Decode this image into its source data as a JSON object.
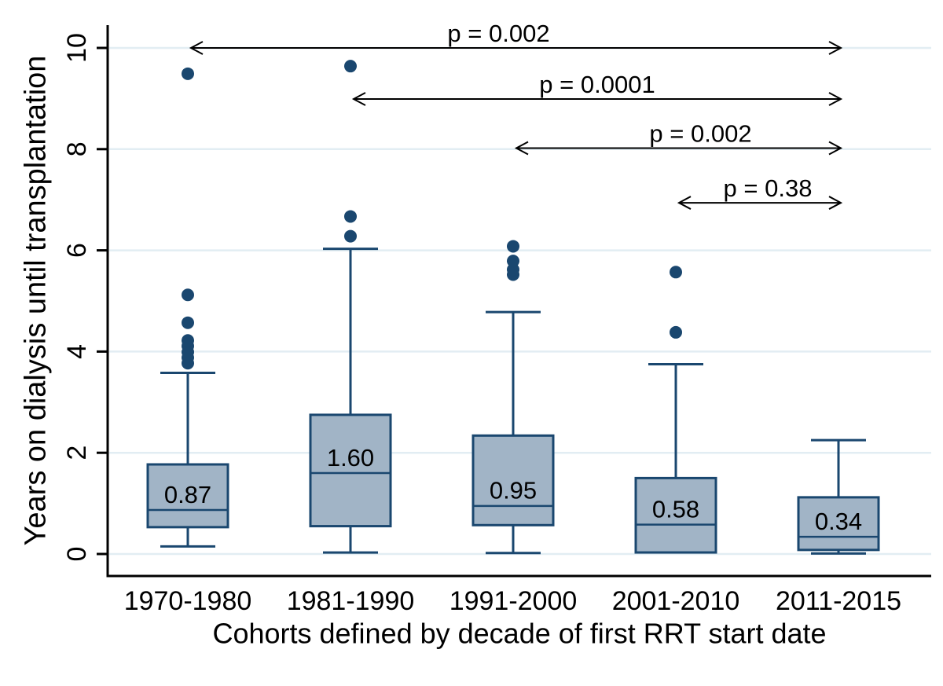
{
  "chart_data": {
    "type": "box",
    "title": "",
    "xlabel": "Cohorts defined by decade of first RRT start date",
    "ylabel": "Years on dialysis until transplantation",
    "ylim": [
      0,
      10
    ],
    "yticks": [
      0,
      2,
      4,
      6,
      8,
      10
    ],
    "grid": true,
    "legend": "none",
    "categories": [
      "1970-1980",
      "1981-1990",
      "1991-2000",
      "2001-2010",
      "2011-2015"
    ],
    "boxes": [
      {
        "category": "1970-1980",
        "whisker_low": 0.15,
        "q1": 0.53,
        "median": 0.87,
        "q3": 1.77,
        "whisker_high": 3.58,
        "median_label": "0.87",
        "outliers": [
          3.77,
          3.88,
          3.99,
          4.11,
          4.22,
          4.57,
          5.12,
          9.49
        ]
      },
      {
        "category": "1981-1990",
        "whisker_low": 0.03,
        "q1": 0.55,
        "median": 1.6,
        "q3": 2.75,
        "whisker_high": 6.03,
        "median_label": "1.60",
        "outliers": [
          6.28,
          6.67,
          9.64
        ]
      },
      {
        "category": "1991-2000",
        "whisker_low": 0.02,
        "q1": 0.57,
        "median": 0.95,
        "q3": 2.34,
        "whisker_high": 4.78,
        "median_label": "0.95",
        "outliers": [
          5.52,
          5.62,
          5.79,
          6.08
        ]
      },
      {
        "category": "2001-2010",
        "whisker_low": 0.03,
        "q1": 0.03,
        "median": 0.58,
        "q3": 1.5,
        "whisker_high": 3.75,
        "median_label": "0.58",
        "outliers": [
          4.38,
          5.57
        ]
      },
      {
        "category": "2011-2015",
        "whisker_low": 0.01,
        "q1": 0.08,
        "median": 0.34,
        "q3": 1.12,
        "whisker_high": 2.25,
        "median_label": "0.34",
        "outliers": []
      }
    ],
    "comparisons": [
      {
        "label": "p = 0.002",
        "from": 0,
        "to": 4,
        "height": 10.0,
        "label_dx": -22
      },
      {
        "label": "p = 0.0001",
        "from": 1,
        "to": 4,
        "height": 8.99,
        "label_dx": 0
      },
      {
        "label": "p = 0.002",
        "from": 2,
        "to": 4,
        "height": 8.02,
        "label_dx": 28
      },
      {
        "label": "p = 0.38",
        "from": 3,
        "to": 4,
        "height": 6.94,
        "label_dx": 10
      }
    ],
    "colors": {
      "box_fill": "#a1b4c6",
      "box_border": "#1a476f",
      "outlier": "#1a476f",
      "gridline": "#e2edf3",
      "axis": "#000000",
      "arrow": "#000000",
      "text": "#000000"
    }
  }
}
